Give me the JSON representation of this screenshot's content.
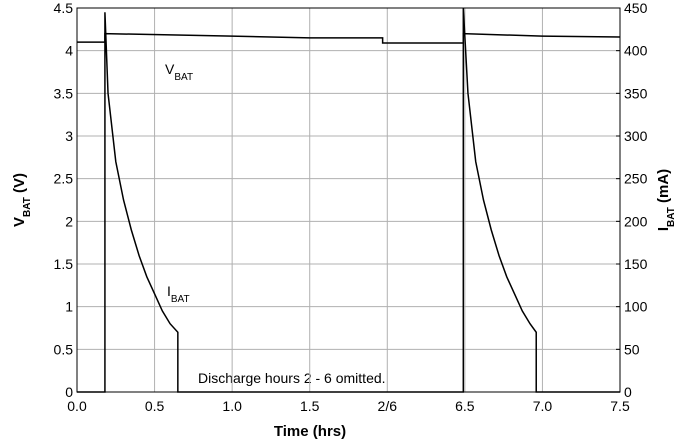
{
  "chart_data": {
    "type": "line",
    "xlabel": "Time (hrs)",
    "ylabel": [
      "V",
      "BAT",
      " (V)"
    ],
    "y2label": [
      "I",
      "BAT",
      " (mA)"
    ],
    "xlim": [
      0,
      7.5
    ],
    "axis_break": [
      2,
      6
    ],
    "xticks": [
      {
        "value": 0,
        "label": "0.0"
      },
      0.5,
      {
        "value": 1,
        "label": "1.0"
      },
      1.5,
      {
        "value": 2,
        "label": "2/6"
      },
      6.5,
      {
        "value": 7,
        "label": "7.0"
      },
      7.5
    ],
    "ylim": [
      0,
      4.5
    ],
    "yticks": [
      0,
      0.5,
      1,
      1.5,
      2,
      2.5,
      3,
      3.5,
      4,
      4.5
    ],
    "y2lim": [
      0,
      450
    ],
    "y2ticks": [
      0,
      50,
      100,
      150,
      200,
      250,
      300,
      350,
      400,
      450
    ],
    "grid": true,
    "series": [
      {
        "name": [
          "V",
          "BAT"
        ],
        "color": "#000000",
        "axis": "y",
        "x": [
          0,
          0.18,
          0.18,
          1.0,
          1.5,
          1.97,
          1.97,
          2,
          6,
          6.49,
          6.49,
          7.0,
          7.5
        ],
        "values": [
          4.1,
          4.1,
          4.2,
          4.17,
          4.15,
          4.15,
          4.09,
          4.09,
          4.09,
          4.09,
          4.2,
          4.17,
          4.16
        ]
      },
      {
        "name": [
          "I",
          "BAT"
        ],
        "color": "#000000",
        "axis": "y2",
        "x": [
          0,
          0.18,
          0.18,
          0.2,
          0.25,
          0.3,
          0.35,
          0.4,
          0.45,
          0.5,
          0.55,
          0.6,
          0.65,
          0.65,
          2,
          6,
          6.49,
          6.49,
          6.52,
          6.57,
          6.62,
          6.67,
          6.72,
          6.77,
          6.82,
          6.87,
          6.92,
          6.96,
          6.96,
          7.5
        ],
        "values": [
          0,
          0,
          445,
          350,
          270,
          225,
          190,
          160,
          135,
          115,
          95,
          80,
          70,
          0,
          0,
          0,
          0,
          450,
          350,
          270,
          225,
          190,
          160,
          135,
          115,
          95,
          80,
          70,
          0,
          0
        ]
      }
    ],
    "annotations": [
      {
        "text": [
          "V",
          "BAT"
        ]
      },
      {
        "text": [
          "I",
          "BAT"
        ]
      },
      {
        "text": "Discharge hours 2 - 6 omitted."
      }
    ]
  }
}
